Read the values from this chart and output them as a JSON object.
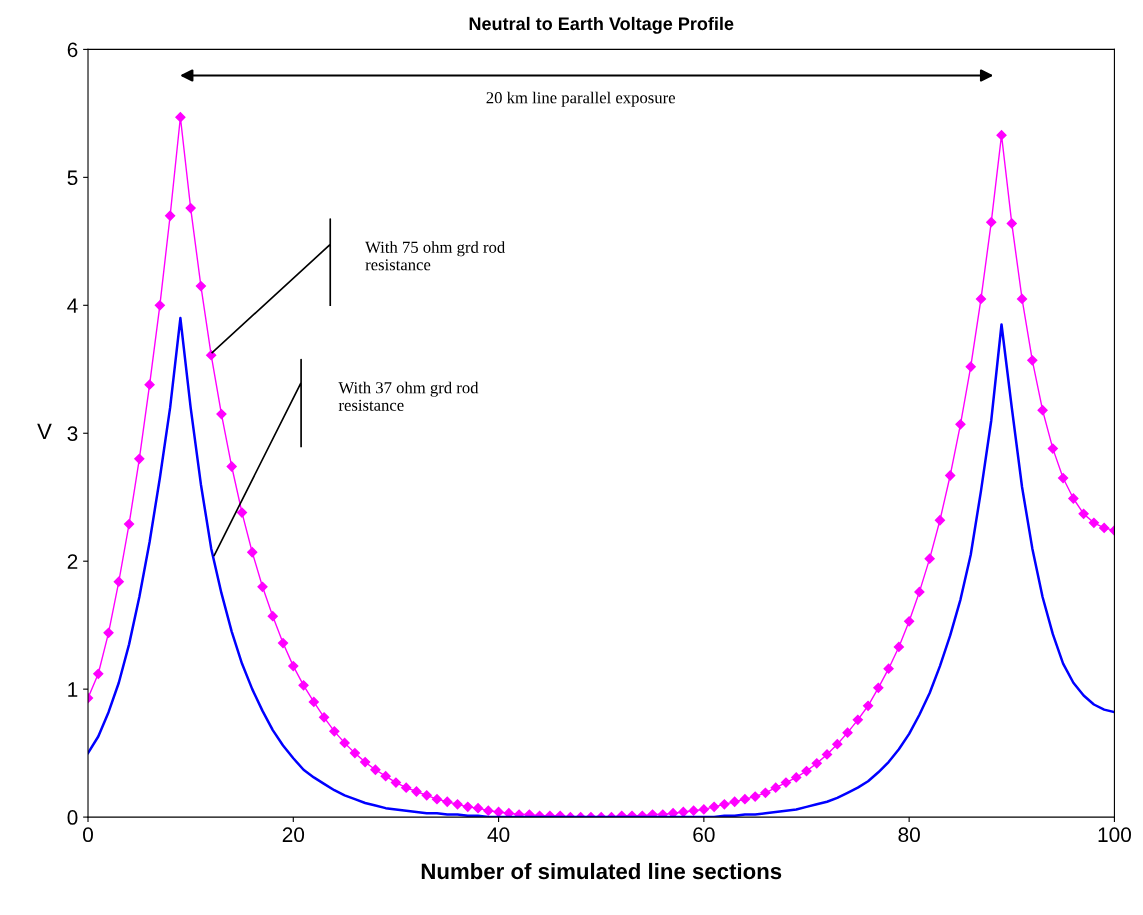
{
  "chart_data": {
    "type": "line",
    "title": "Neutral to Earth Voltage Profile",
    "xlabel": "Number of simulated line sections",
    "ylabel": "V",
    "x": [
      0,
      1,
      2,
      3,
      4,
      5,
      6,
      7,
      8,
      9,
      10,
      11,
      12,
      13,
      14,
      15,
      16,
      17,
      18,
      19,
      20,
      21,
      22,
      23,
      24,
      25,
      26,
      27,
      28,
      29,
      30,
      31,
      32,
      33,
      34,
      35,
      36,
      37,
      38,
      39,
      40,
      41,
      42,
      43,
      44,
      45,
      46,
      47,
      48,
      49,
      50,
      51,
      52,
      53,
      54,
      55,
      56,
      57,
      58,
      59,
      60,
      61,
      62,
      63,
      64,
      65,
      66,
      67,
      68,
      69,
      70,
      71,
      72,
      73,
      74,
      75,
      76,
      77,
      78,
      79,
      80,
      81,
      82,
      83,
      84,
      85,
      86,
      87,
      88,
      89,
      90,
      91,
      92,
      93,
      94,
      95,
      96,
      97,
      98,
      99,
      100
    ],
    "series": [
      {
        "color": "#ff00ff",
        "marker": "diamond",
        "values": [
          0.93,
          1.12,
          1.44,
          1.84,
          2.29,
          2.8,
          3.38,
          4.0,
          4.7,
          5.47,
          4.76,
          4.15,
          3.61,
          3.15,
          2.74,
          2.38,
          2.07,
          1.8,
          1.57,
          1.36,
          1.18,
          1.03,
          0.9,
          0.78,
          0.67,
          0.58,
          0.5,
          0.43,
          0.37,
          0.32,
          0.27,
          0.23,
          0.2,
          0.17,
          0.14,
          0.12,
          0.1,
          0.08,
          0.07,
          0.05,
          0.04,
          0.03,
          0.02,
          0.02,
          0.01,
          0.01,
          0.01,
          0.0,
          0.0,
          0.0,
          0.0,
          0.0,
          0.01,
          0.01,
          0.01,
          0.02,
          0.02,
          0.03,
          0.04,
          0.05,
          0.06,
          0.08,
          0.1,
          0.12,
          0.14,
          0.16,
          0.19,
          0.23,
          0.27,
          0.31,
          0.36,
          0.42,
          0.49,
          0.57,
          0.66,
          0.76,
          0.87,
          1.01,
          1.16,
          1.33,
          1.53,
          1.76,
          2.02,
          2.32,
          2.67,
          3.07,
          3.52,
          4.05,
          4.65,
          5.33,
          4.64,
          4.05,
          3.57,
          3.18,
          2.88,
          2.65,
          2.49,
          2.37,
          2.3,
          2.26,
          2.24
        ]
      },
      {
        "color": "#0000ff",
        "marker": "none",
        "values": [
          0.5,
          0.63,
          0.82,
          1.05,
          1.35,
          1.72,
          2.15,
          2.65,
          3.2,
          3.9,
          3.2,
          2.6,
          2.1,
          1.75,
          1.45,
          1.2,
          1.0,
          0.83,
          0.68,
          0.56,
          0.46,
          0.37,
          0.31,
          0.26,
          0.21,
          0.17,
          0.14,
          0.11,
          0.09,
          0.07,
          0.06,
          0.05,
          0.04,
          0.03,
          0.03,
          0.02,
          0.02,
          0.01,
          0.01,
          0.0,
          0.0,
          0.0,
          0.0,
          0.0,
          0.0,
          0.0,
          0.0,
          0.0,
          0.0,
          0.0,
          0.0,
          0.0,
          0.0,
          0.0,
          0.0,
          0.0,
          0.0,
          0.0,
          0.0,
          0.0,
          0.0,
          0.0,
          0.01,
          0.01,
          0.02,
          0.02,
          0.03,
          0.04,
          0.05,
          0.06,
          0.08,
          0.1,
          0.12,
          0.15,
          0.19,
          0.23,
          0.28,
          0.35,
          0.43,
          0.53,
          0.65,
          0.8,
          0.97,
          1.18,
          1.42,
          1.7,
          2.05,
          2.55,
          3.1,
          3.85,
          3.2,
          2.58,
          2.1,
          1.72,
          1.43,
          1.2,
          1.05,
          0.95,
          0.88,
          0.84,
          0.82
        ]
      }
    ],
    "xlim": [
      0,
      100
    ],
    "xticks": [
      0,
      20,
      40,
      60,
      80,
      100
    ],
    "ylim": [
      0,
      6
    ],
    "yticks": [
      0,
      1,
      2,
      3,
      4,
      5,
      6
    ],
    "grid": false,
    "legend": false,
    "annotations": [
      "20 km line parallel exposure",
      "With 75 ohm grd rod\nresistance",
      "With 37 ohm grd rod\nresistance"
    ]
  }
}
